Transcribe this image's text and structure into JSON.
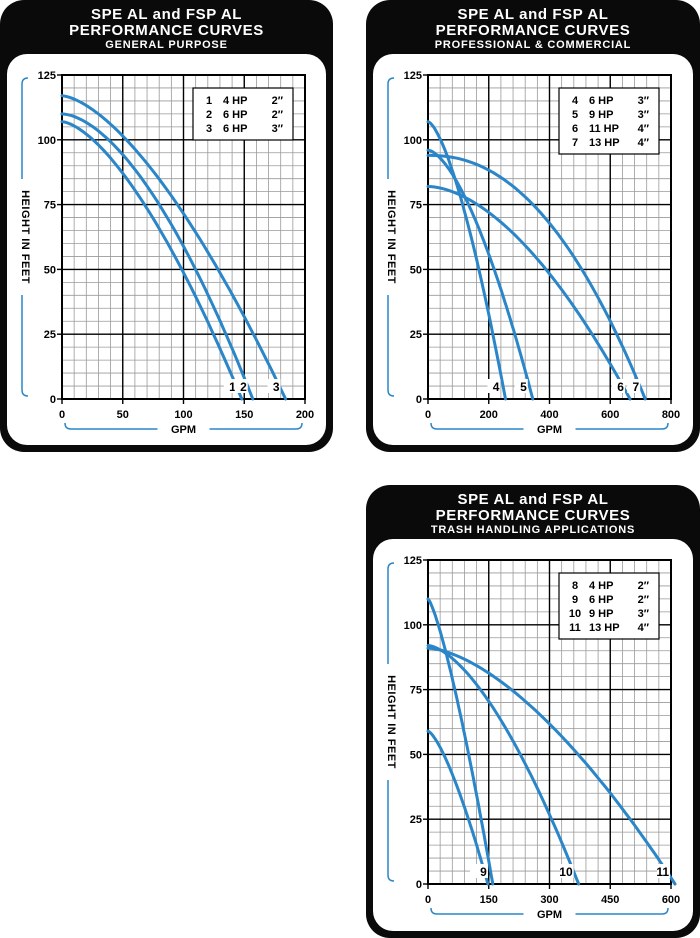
{
  "chart_data": [
    {
      "type": "line",
      "title": "SPE AL and FSP AL",
      "subtitle": "PERFORMANCE CURVES",
      "category": "GENERAL PURPOSE",
      "xlabel": "GPM",
      "ylabel": "HEIGHT IN FEET",
      "xlim": [
        0,
        200
      ],
      "ylim": [
        0,
        125
      ],
      "xticks": [
        0,
        50,
        100,
        150,
        200
      ],
      "yticks": [
        0,
        25,
        50,
        75,
        100,
        125
      ],
      "grid": true,
      "legend_position": "top-right",
      "legend": [
        {
          "id": "1",
          "hp": "4 HP",
          "size": "2″"
        },
        {
          "id": "2",
          "hp": "6 HP",
          "size": "2″"
        },
        {
          "id": "3",
          "hp": "6 HP",
          "size": "3″"
        }
      ],
      "series": [
        {
          "name": "1",
          "shutoff_head": 107,
          "max_flow": 148,
          "shape": 1.55
        },
        {
          "name": "2",
          "shutoff_head": 110,
          "max_flow": 157,
          "shape": 1.7
        },
        {
          "name": "3",
          "shutoff_head": 117,
          "max_flow": 184,
          "shape": 1.55
        }
      ]
    },
    {
      "type": "line",
      "title": "SPE AL and FSP AL",
      "subtitle": "PERFORMANCE CURVES",
      "category": "PROFESSIONAL & COMMERCIAL",
      "xlabel": "GPM",
      "ylabel": "HEIGHT IN FEET",
      "xlim": [
        0,
        800
      ],
      "ylim": [
        0,
        125
      ],
      "xticks": [
        0,
        200,
        400,
        600,
        800
      ],
      "yticks": [
        0,
        25,
        50,
        75,
        100,
        125
      ],
      "grid": true,
      "legend_position": "top-right",
      "legend": [
        {
          "id": "4",
          "hp": "6 HP",
          "size": "3″"
        },
        {
          "id": "5",
          "hp": "9 HP",
          "size": "3″"
        },
        {
          "id": "6",
          "hp": "11 HP",
          "size": "4″"
        },
        {
          "id": "7",
          "hp": "13 HP",
          "size": "4″"
        }
      ],
      "series": [
        {
          "name": "4",
          "shutoff_head": 107,
          "max_flow": 255,
          "shape": 1.5
        },
        {
          "name": "5",
          "shutoff_head": 96,
          "max_flow": 345,
          "shape": 1.6
        },
        {
          "name": "6",
          "shutoff_head": 82,
          "max_flow": 665,
          "shape": 1.75
        },
        {
          "name": "7",
          "shutoff_head": 94,
          "max_flow": 715,
          "shape": 2.2
        }
      ]
    },
    {
      "type": "line",
      "title": "SPE AL and FSP AL",
      "subtitle": "PERFORMANCE CURVES",
      "category": "TRASH HANDLING APPLICATIONS",
      "xlabel": "GPM",
      "ylabel": "HEIGHT IN FEET",
      "xlim": [
        0,
        600
      ],
      "ylim": [
        0,
        125
      ],
      "xticks": [
        0,
        150,
        300,
        450,
        600
      ],
      "yticks": [
        0,
        25,
        50,
        75,
        100,
        125
      ],
      "grid": true,
      "legend_position": "top-right",
      "legend": [
        {
          "id": "8",
          "hp": "4 HP",
          "size": "2″"
        },
        {
          "id": "9",
          "hp": "6 HP",
          "size": "2″"
        },
        {
          "id": "10",
          "hp": "9 HP",
          "size": "3″"
        },
        {
          "id": "11",
          "hp": "13 HP",
          "size": "4″"
        }
      ],
      "series": [
        {
          "name": "8",
          "shutoff_head": 59,
          "max_flow": 148,
          "shape": 1.4
        },
        {
          "name": "9",
          "shutoff_head": 110,
          "max_flow": 160,
          "shape": 1.3
        },
        {
          "name": "10",
          "shutoff_head": 92,
          "max_flow": 372,
          "shape": 1.6
        },
        {
          "name": "11",
          "shutoff_head": 91,
          "max_flow": 610,
          "shape": 1.6
        }
      ]
    }
  ],
  "colors": {
    "curve": "#2a86c8",
    "card_bg": "#0a0a0a",
    "grid_minor": "#9a9a9a",
    "grid_major": "#000000",
    "axis_bracket": "#2a86c8"
  }
}
